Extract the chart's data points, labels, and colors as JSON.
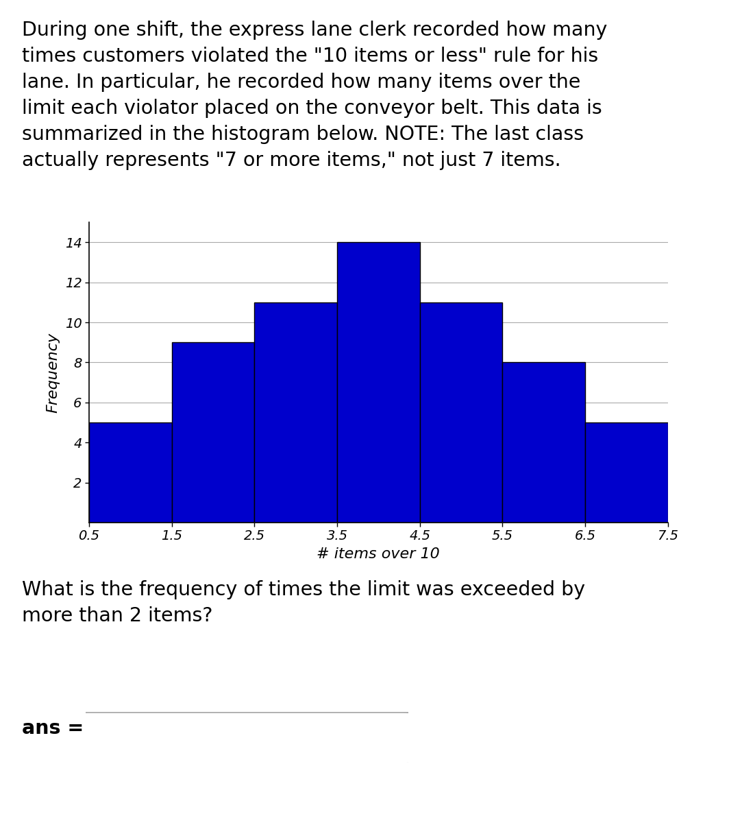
{
  "paragraph_text": "During one shift, the express lane clerk recorded how many\ntimes customers violated the \"10 items or less\" rule for his\nlane. In particular, he recorded how many items over the\nlimit each violator placed on the conveyor belt. This data is\nsummarized in the histogram below. NOTE: The last class\nactually represents \"7 or more items,\" not just 7 items.",
  "question_text": "What is the frequency of times the limit was exceeded by\nmore than 2 items?",
  "ans_label": "ans =",
  "bar_values": [
    5,
    9,
    11,
    14,
    11,
    8,
    5
  ],
  "bar_edges": [
    0.5,
    1.5,
    2.5,
    3.5,
    4.5,
    5.5,
    6.5,
    7.5
  ],
  "bar_color": "#0000CC",
  "bar_edgecolor": "#000000",
  "xlabel": "# items over 10",
  "ylabel": "Frequency",
  "yticks": [
    2,
    4,
    6,
    8,
    10,
    12,
    14
  ],
  "xticks": [
    0.5,
    1.5,
    2.5,
    3.5,
    4.5,
    5.5,
    6.5,
    7.5
  ],
  "xtick_labels": [
    "0.5",
    "1.5",
    "2.5",
    "3.5",
    "4.5",
    "5.5",
    "6.5",
    "7.5"
  ],
  "ylim": [
    0,
    15
  ],
  "xlim": [
    0.5,
    7.5
  ],
  "background_color": "#ffffff",
  "text_color": "#000000",
  "para_fontsize": 20.5,
  "axis_label_fontsize": 16,
  "tick_fontsize": 14,
  "question_fontsize": 20.5,
  "ans_fontsize": 20.5
}
